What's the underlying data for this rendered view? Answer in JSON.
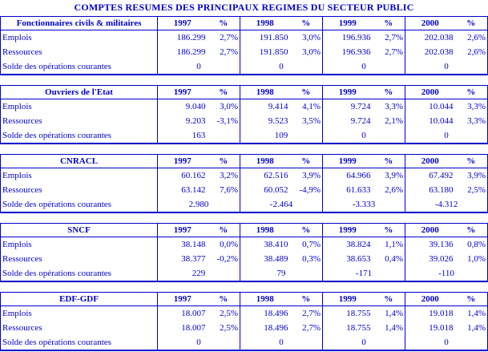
{
  "title": "COMPTES RESUMES DES PRINCIPAUX REGIMES DU SECTEUR PUBLIC",
  "colors": {
    "text": "#0000CC",
    "border": "#0000CC",
    "background": "#FFFFFF"
  },
  "years": [
    "1997",
    "1998",
    "1999",
    "2000"
  ],
  "pct_label": "%",
  "row_labels": {
    "emplois": "Emplois",
    "ressources": "Ressources",
    "solde": "Solde des opérations courantes"
  },
  "tables": [
    {
      "slug": "fonctionnaires",
      "name": "Fonctionnaires civils & militaires",
      "emplois": [
        "186.299",
        "2,7%",
        "191.850",
        "3,0%",
        "196.936",
        "2,7%",
        "202.038",
        "2,6%"
      ],
      "ressources": [
        "186.299",
        "2,7%",
        "191.850",
        "3,0%",
        "196.936",
        "2,7%",
        "202.038",
        "2,6%"
      ],
      "solde": [
        "0",
        "0",
        "0",
        "0"
      ]
    },
    {
      "slug": "ouvriers-etat",
      "name": "Ouvriers de l'Etat",
      "emplois": [
        "9.040",
        "3,0%",
        "9.414",
        "4,1%",
        "9.724",
        "3,3%",
        "10.044",
        "3,3%"
      ],
      "ressources": [
        "9.203",
        "-3,1%",
        "9.523",
        "3,5%",
        "9.724",
        "2,1%",
        "10.044",
        "3,3%"
      ],
      "solde": [
        "163",
        "109",
        "0",
        "0"
      ]
    },
    {
      "slug": "cnracl",
      "name": "CNRACL",
      "emplois": [
        "60.162",
        "3,2%",
        "62.516",
        "3,9%",
        "64.966",
        "3,9%",
        "67.492",
        "3,9%"
      ],
      "ressources": [
        "63.142",
        "7,6%",
        "60.052",
        "-4,9%",
        "61.633",
        "2,6%",
        "63.180",
        "2,5%"
      ],
      "solde": [
        "2.980",
        "-2.464",
        "-3.333",
        "-4.312"
      ]
    },
    {
      "slug": "sncf",
      "name": "SNCF",
      "emplois": [
        "38.148",
        "0,0%",
        "38.410",
        "0,7%",
        "38.824",
        "1,1%",
        "39.136",
        "0,8%"
      ],
      "ressources": [
        "38.377",
        "-0,2%",
        "38.489",
        "0,3%",
        "38.653",
        "0,4%",
        "39.026",
        "1,0%"
      ],
      "solde": [
        "229",
        "79",
        "-171",
        "-110"
      ]
    },
    {
      "slug": "edf-gdf",
      "name": "EDF-GDF",
      "emplois": [
        "18.007",
        "2,5%",
        "18.496",
        "2,7%",
        "18.755",
        "1,4%",
        "19.018",
        "1,4%"
      ],
      "ressources": [
        "18.007",
        "2,5%",
        "18.496",
        "2,7%",
        "18.755",
        "1,4%",
        "19.018",
        "1,4%"
      ],
      "solde": [
        "0",
        "0",
        "0",
        "0"
      ]
    }
  ]
}
